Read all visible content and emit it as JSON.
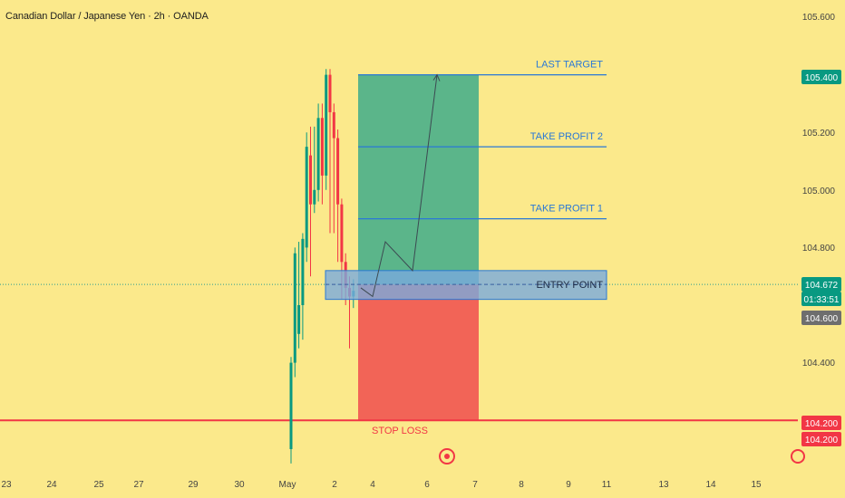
{
  "header": {
    "title": "Canadian Dollar / Japanese Yen · 2h · OANDA"
  },
  "colors": {
    "background": "#fbe98b",
    "bull": "#089981",
    "bear": "#f23645",
    "target_zone": "#5bb58a",
    "stop_zone": "#f26457",
    "entry_zone": "#79aadd",
    "level_line": "#2a78d6",
    "stop_line": "#f23645"
  },
  "chart_data": {
    "type": "candlestick",
    "title": "Canadian Dollar / Japanese Yen · 2h · OANDA",
    "xlabel": "",
    "ylabel": "",
    "ylim": [
      104.05,
      105.68
    ],
    "y_ticks": [
      "105.600",
      "105.200",
      "105.000",
      "104.800",
      "104.400"
    ],
    "x_ticks": [
      "23",
      "24",
      "25",
      "27",
      "29",
      "30",
      "May",
      "2",
      "4",
      "6",
      "7",
      "8",
      "9",
      "11",
      "13",
      "14",
      "15"
    ],
    "grid": false,
    "candles": [
      {
        "o": 104.1,
        "h": 104.42,
        "l": 104.05,
        "c": 104.4
      },
      {
        "o": 104.4,
        "h": 104.8,
        "l": 104.35,
        "c": 104.78
      },
      {
        "o": 104.5,
        "h": 104.82,
        "l": 104.45,
        "c": 104.6
      },
      {
        "o": 104.6,
        "h": 104.85,
        "l": 104.48,
        "c": 104.83
      },
      {
        "o": 104.8,
        "h": 105.2,
        "l": 104.75,
        "c": 105.15
      },
      {
        "o": 105.12,
        "h": 105.22,
        "l": 104.7,
        "c": 104.95
      },
      {
        "o": 104.95,
        "h": 105.22,
        "l": 104.92,
        "c": 105.0
      },
      {
        "o": 105.0,
        "h": 105.3,
        "l": 104.96,
        "c": 105.25
      },
      {
        "o": 105.25,
        "h": 105.3,
        "l": 104.95,
        "c": 105.05
      },
      {
        "o": 105.05,
        "h": 105.42,
        "l": 105.0,
        "c": 105.4
      },
      {
        "o": 105.4,
        "h": 105.42,
        "l": 104.85,
        "c": 105.27
      },
      {
        "o": 105.27,
        "h": 105.3,
        "l": 104.85,
        "c": 105.18
      },
      {
        "o": 105.18,
        "h": 105.21,
        "l": 104.75,
        "c": 104.95
      },
      {
        "o": 104.95,
        "h": 104.97,
        "l": 104.62,
        "c": 104.75
      },
      {
        "o": 104.75,
        "h": 104.78,
        "l": 104.6,
        "c": 104.66
      },
      {
        "o": 104.66,
        "h": 104.7,
        "l": 104.45,
        "c": 104.63
      },
      {
        "o": 104.63,
        "h": 104.69,
        "l": 104.59,
        "c": 104.65
      }
    ],
    "position": {
      "entry": 104.672,
      "entry_zone": [
        104.62,
        104.72
      ],
      "take_profit": 105.4,
      "stop_loss": 104.2
    },
    "levels": [
      {
        "label": "LAST TARGET",
        "price": 105.4
      },
      {
        "label": "TAKE PROFIT 2",
        "price": 105.15
      },
      {
        "label": "TAKE PROFIT 1",
        "price": 104.9
      },
      {
        "label": "ENTRY POINT",
        "price": 104.672
      }
    ],
    "stop_label": "STOP LOSS",
    "projection_path": [
      104.66,
      104.63,
      104.82,
      104.72,
      105.4
    ],
    "price_badges": [
      {
        "text": "105.400",
        "price": 105.4,
        "kind": "target"
      },
      {
        "text": "104.672",
        "price": 104.672,
        "kind": "current"
      },
      {
        "text": "01:33:51",
        "price": 104.672,
        "kind": "timer"
      },
      {
        "text": "104.600",
        "price": 104.6,
        "kind": "gray"
      },
      {
        "text": "104.200",
        "price": 104.2,
        "kind": "stop"
      },
      {
        "text": "104.200",
        "price": 104.2,
        "kind": "stop"
      }
    ]
  }
}
